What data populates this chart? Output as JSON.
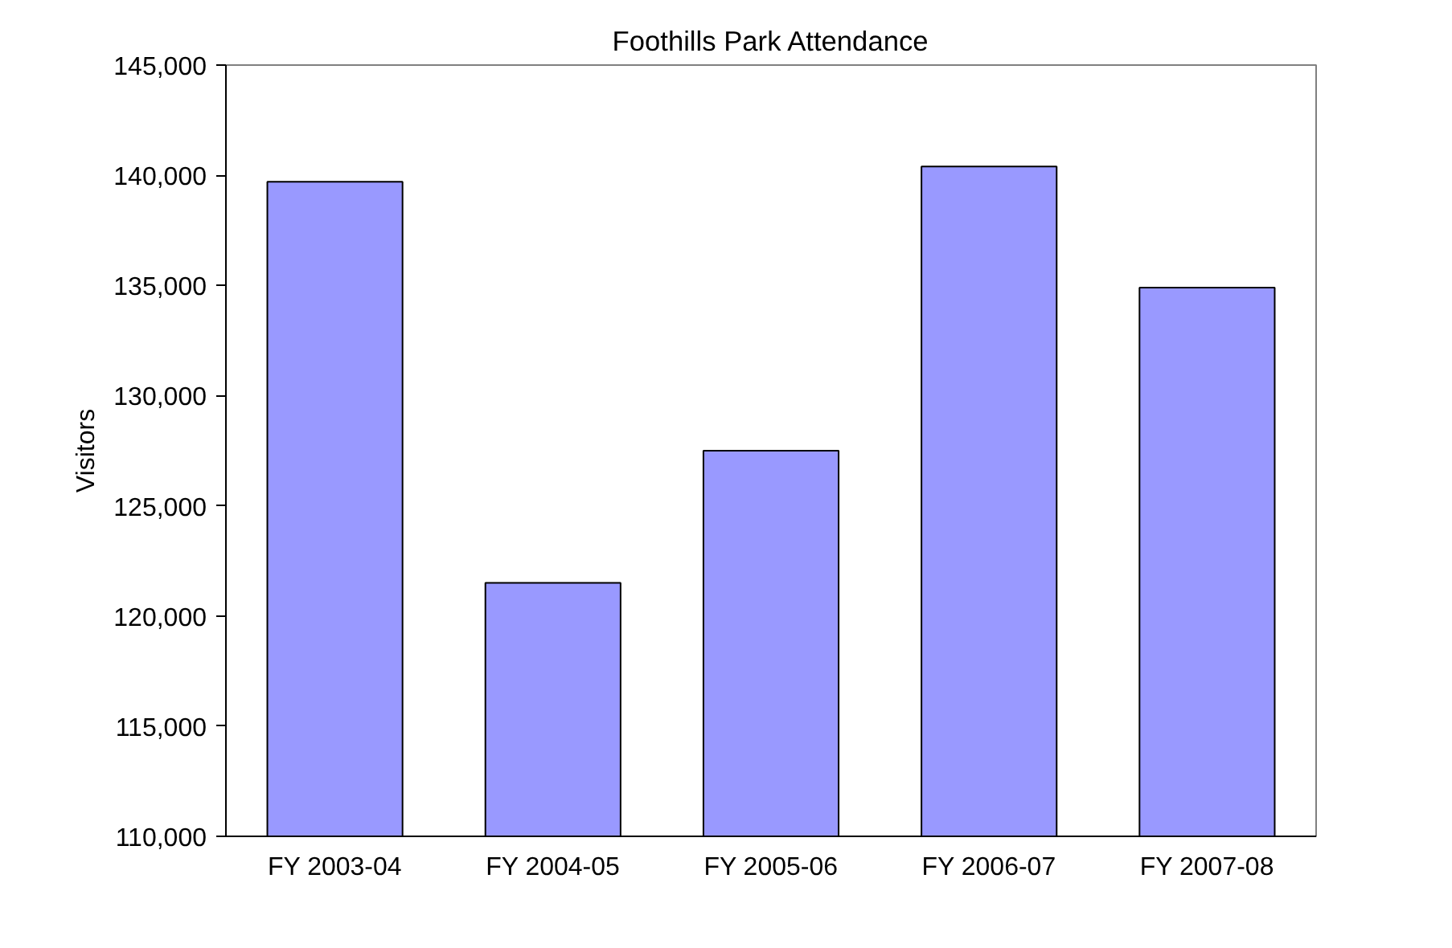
{
  "chart_data": {
    "type": "bar",
    "title": "Foothills Park Attendance",
    "ylabel": "Visitors",
    "categories": [
      "FY 2003-04",
      "FY 2004-05",
      "FY 2005-06",
      "FY 2006-07",
      "FY 2007-08"
    ],
    "values": [
      139700,
      121500,
      127500,
      140400,
      134900
    ],
    "color": "#9999ff",
    "ylim": [
      110000,
      145000
    ],
    "yticks": [
      {
        "value": 110000,
        "label": "110,000"
      },
      {
        "value": 115000,
        "label": "115,000"
      },
      {
        "value": 120000,
        "label": "120,000"
      },
      {
        "value": 125000,
        "label": "125,000"
      },
      {
        "value": 130000,
        "label": "130,000"
      },
      {
        "value": 135000,
        "label": "135,000"
      },
      {
        "value": 140000,
        "label": "140,000"
      },
      {
        "value": 145000,
        "label": "145,000"
      }
    ],
    "grid": false
  }
}
